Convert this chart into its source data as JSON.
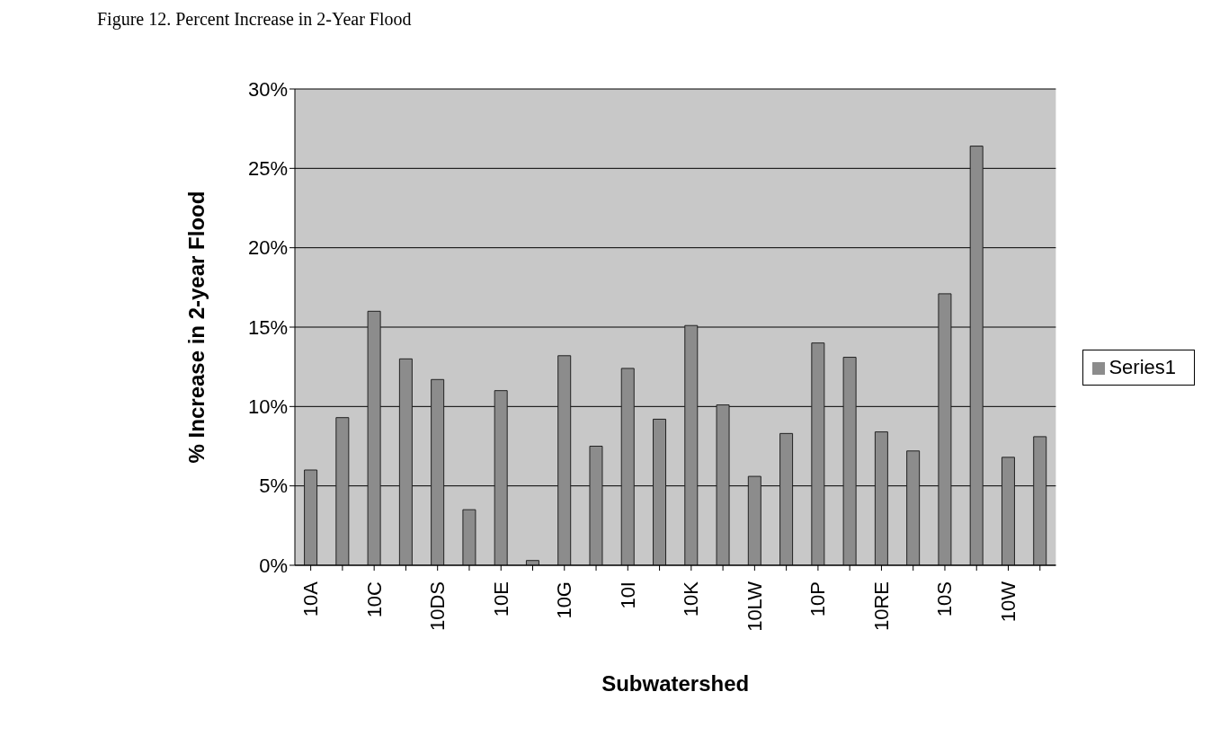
{
  "chart_data": {
    "type": "bar",
    "title": "Figure 12. Percent Increase in 2-Year Flood",
    "xlabel": "Subwatershed",
    "ylabel": "% Increase in 2-year Flood",
    "categories": [
      "10A",
      null,
      "10C",
      null,
      "10DS",
      null,
      "10E",
      null,
      "10G",
      null,
      "10I",
      null,
      "10K",
      null,
      "10LW",
      null,
      "10P",
      null,
      "10RE",
      null,
      "10S",
      null,
      "10W",
      null
    ],
    "series": [
      {
        "name": "Series1",
        "color": "#8c8c8c",
        "values": [
          6,
          9.3,
          16,
          13,
          11.7,
          3.5,
          11,
          0.3,
          13.2,
          7.5,
          12.4,
          9.2,
          15.1,
          10.1,
          5.6,
          8.3,
          14,
          13.1,
          8.4,
          7.2,
          17.1,
          26.4,
          6.8,
          8.1
        ]
      }
    ],
    "ylim": [
      0,
      30
    ],
    "yticks": [
      {
        "value": 0,
        "label": "0%"
      },
      {
        "value": 5,
        "label": "5%"
      },
      {
        "value": 10,
        "label": "10%"
      },
      {
        "value": 15,
        "label": "15%"
      },
      {
        "value": 20,
        "label": "20%"
      },
      {
        "value": 25,
        "label": "25%"
      },
      {
        "value": 30,
        "label": "30%"
      }
    ],
    "grid": "y",
    "legend": "right"
  }
}
